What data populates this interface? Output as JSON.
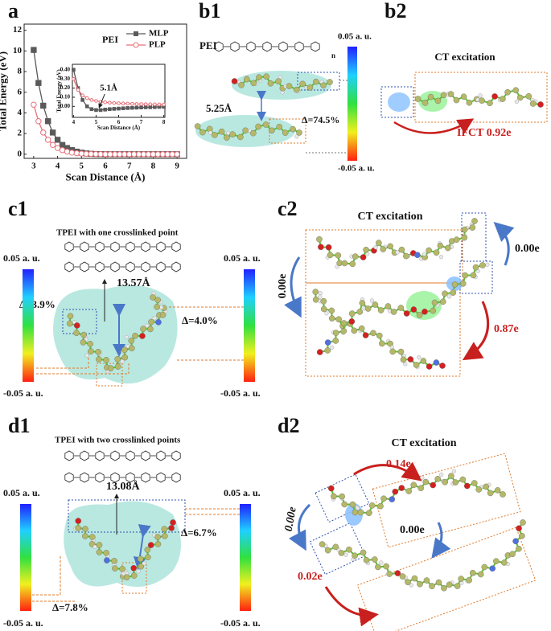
{
  "panels": {
    "a": "a",
    "b1": "b1",
    "b2": "b2",
    "c1": "c1",
    "c2": "c2",
    "d1": "d1",
    "d2": "d2"
  },
  "chart_data": [
    {
      "type": "line",
      "xlabel": "Scan Distance (Å)",
      "ylabel": "Total Energy (eV)",
      "legend_title": "PEI",
      "legend": "upper right",
      "x": [
        3.0,
        3.2,
        3.4,
        3.6,
        3.8,
        4.0,
        4.2,
        4.4,
        4.6,
        4.8,
        5.0,
        5.2,
        5.4,
        5.6,
        5.8,
        6.0,
        6.2,
        6.4,
        6.6,
        6.8,
        7.0,
        7.2,
        7.4,
        7.6,
        7.8,
        8.0,
        8.2,
        8.4,
        8.6,
        8.8,
        9.0
      ],
      "series": [
        {
          "name": "MLP",
          "color": "#5a5a5a",
          "marker": "square",
          "values": [
            10.1,
            6.9,
            4.7,
            3.2,
            2.1,
            1.4,
            0.9,
            0.6,
            0.4,
            0.25,
            0.15,
            0.08,
            0.04,
            0.02,
            0.01,
            0,
            0,
            0,
            0,
            0,
            0,
            0,
            0,
            0,
            0,
            0,
            0,
            0,
            0,
            0,
            0
          ]
        },
        {
          "name": "PLP",
          "color": "#e8707a",
          "marker": "circle",
          "values": [
            4.8,
            3.2,
            2.1,
            1.4,
            0.9,
            0.6,
            0.4,
            0.25,
            0.15,
            0.1,
            0.06,
            0.04,
            0.03,
            0.02,
            0.01,
            0,
            0,
            0,
            0,
            0,
            0,
            0,
            0,
            0,
            0,
            0,
            0,
            0,
            0,
            0,
            0
          ]
        }
      ],
      "xlim": [
        2.6,
        9.4
      ],
      "ylim": [
        -0.4,
        12.6
      ],
      "xticks": [
        3,
        4,
        5,
        6,
        7,
        8,
        9
      ],
      "yticks": [
        0,
        2,
        4,
        6,
        8,
        10,
        12
      ]
    },
    {
      "type": "line",
      "xlabel": "Scan Distance (Å)",
      "ylabel": "Total Energy (eV)",
      "annotation": "5.1Å",
      "annotation_x": 5.1,
      "annotation_y": -0.04,
      "x": [
        4.0,
        4.2,
        4.4,
        4.6,
        4.8,
        5.0,
        5.2,
        5.4,
        5.6,
        5.8,
        6.0,
        6.2,
        6.4,
        6.6,
        6.8,
        7.0,
        7.2,
        7.4,
        7.6,
        7.8,
        8.0
      ],
      "series": [
        {
          "color": "#5a5a5a",
          "marker": "square",
          "values": [
            0.4,
            0.2,
            0.07,
            0.0,
            -0.03,
            -0.04,
            -0.04,
            -0.035,
            -0.03,
            -0.027,
            -0.024,
            -0.021,
            -0.018,
            -0.016,
            -0.014,
            -0.012,
            -0.01,
            -0.009,
            -0.008,
            -0.006,
            -0.005
          ]
        },
        {
          "color": "#e8707a",
          "marker": "circle",
          "values": [
            0.3,
            0.18,
            0.12,
            0.09,
            0.07,
            0.06,
            0.05,
            0.045,
            0.04,
            0.037,
            0.034,
            0.032,
            0.03,
            0.028,
            0.026,
            0.025,
            0.024,
            0.023,
            0.022,
            0.021,
            0.02
          ]
        }
      ],
      "xlim": [
        3.95,
        8.05
      ],
      "ylim": [
        -0.12,
        0.46
      ],
      "xticks": [
        4,
        5,
        6,
        7,
        8
      ],
      "yticks": [
        {
          "value": 0,
          "label": "0.00"
        },
        {
          "value": 0.1,
          "label": "0.10"
        },
        {
          "value": 0.2,
          "label": "0.20"
        },
        {
          "value": 0.3,
          "label": "0.30"
        },
        {
          "value": 0.4,
          "label": "0.40"
        }
      ]
    }
  ],
  "b1": {
    "label": "PEI",
    "repeat": "n",
    "distance": "5.25Å",
    "delta": "Δ=74.5%",
    "scale_max": "0.05 a. u.",
    "scale_min": "-0.05 a. u."
  },
  "b2": {
    "title": "CT excitation",
    "transfer": "IFCT 0.92e"
  },
  "c1": {
    "title": "TPEI with one crosslinked point",
    "distance": "13.57Å",
    "delta_left": "Δ=3.9%",
    "delta_right": "Δ=4.0%",
    "scale_max_left": "0.05 a. u.",
    "scale_min_left": "-0.05 a. u.",
    "scale_max_right": "0.05 a. u.",
    "scale_min_right": "-0.05 a. u."
  },
  "c2": {
    "title": "CT excitation",
    "transfer_left": "0.00e",
    "transfer_right": "0.00e",
    "transfer_main": "0.87e"
  },
  "d1": {
    "title": "TPEI with two crosslinked points",
    "distance": "13.08Å",
    "delta_left": "Δ=7.8%",
    "delta_right": "Δ=6.7%",
    "scale_max_left": "0.05 a. u.",
    "scale_min_left": "-0.05 a. u.",
    "scale_max_right": "0.05 a. u.",
    "scale_min_right": "-0.05 a. u."
  },
  "d2": {
    "title": "CT excitation",
    "transfer_top": "0.14e",
    "transfer_left": "0.00e",
    "transfer_middle": "0.00e",
    "transfer_bottom": "0.02e"
  }
}
